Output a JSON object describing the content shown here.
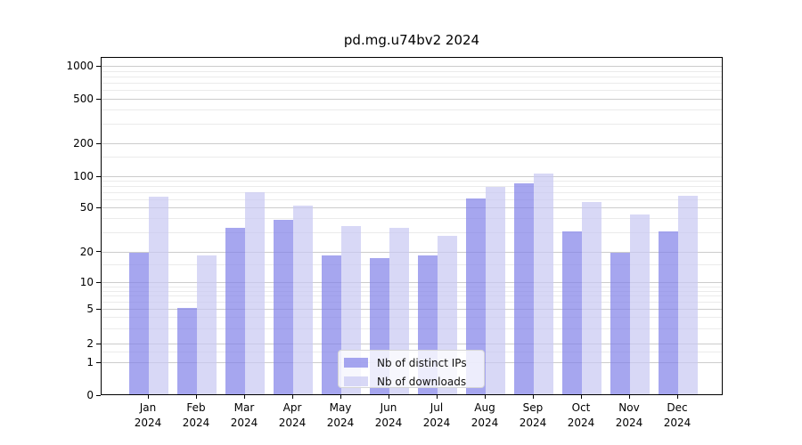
{
  "title": "pd.mg.u74bv2 2024",
  "chart_data": {
    "type": "bar",
    "title": "pd.mg.u74bv2 2024",
    "categories": [
      "Jan",
      "Feb",
      "Mar",
      "Apr",
      "May",
      "Jun",
      "Jul",
      "Aug",
      "Sep",
      "Oct",
      "Nov",
      "Dec"
    ],
    "category_year": "2024",
    "series": [
      {
        "name": "Nb of distinct IPs",
        "color": "#8080e8",
        "alpha": 0.7,
        "values": [
          19,
          5,
          32,
          38,
          18,
          17,
          18,
          60,
          84,
          30,
          19,
          30
        ]
      },
      {
        "name": "Nb of downloads",
        "color": "#c8c8f2",
        "alpha": 0.7,
        "values": [
          62,
          18,
          68,
          51,
          33,
          32,
          27,
          77,
          103,
          55,
          42,
          63
        ]
      }
    ],
    "yscale": "log-1-2-5 (symlog, linear below 1)",
    "y_ticks": [
      0,
      1,
      2,
      5,
      10,
      20,
      50,
      100,
      200,
      500,
      1000
    ],
    "y_tick_labels": [
      "0",
      "1",
      "2",
      "5",
      "10",
      "20",
      "50",
      "100",
      "200",
      "500",
      "1000"
    ],
    "ylim": [
      0,
      1200
    ],
    "xlabel": "",
    "ylabel": "",
    "grid": {
      "major": true,
      "minor": true
    },
    "legend": {
      "position": "lower center",
      "entries": [
        "Nb of distinct IPs",
        "Nb of downloads"
      ]
    }
  },
  "colors": {
    "background": "#ffffff",
    "spine": "#000000",
    "grid_major": "#cccccc",
    "grid_minor": "#ebebeb",
    "text": "#111111",
    "bar_distinct_ips": "#8080e8",
    "bar_downloads": "#c8c8f2",
    "legend_bg": "rgba(255,255,255,0.8)",
    "legend_border": "#d5d5d5"
  }
}
